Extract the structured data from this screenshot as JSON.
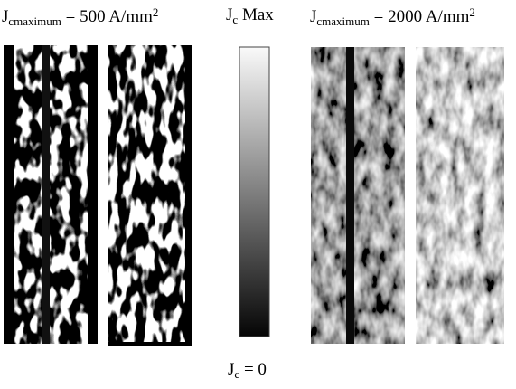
{
  "left_label": {
    "symbol": "J",
    "subscript": "cmaximum",
    "text": "= 500 A/mm",
    "superscript": "2"
  },
  "colorbar": {
    "top": {
      "symbol": "J",
      "subscript": "c",
      "text": "Max"
    },
    "bottom": {
      "symbol": "J",
      "subscript": "c",
      "text": "= 0"
    }
  },
  "right_label": {
    "symbol": "J",
    "subscript": "cmaximum",
    "text": "= 2000 A/mm",
    "superscript": "2"
  }
}
